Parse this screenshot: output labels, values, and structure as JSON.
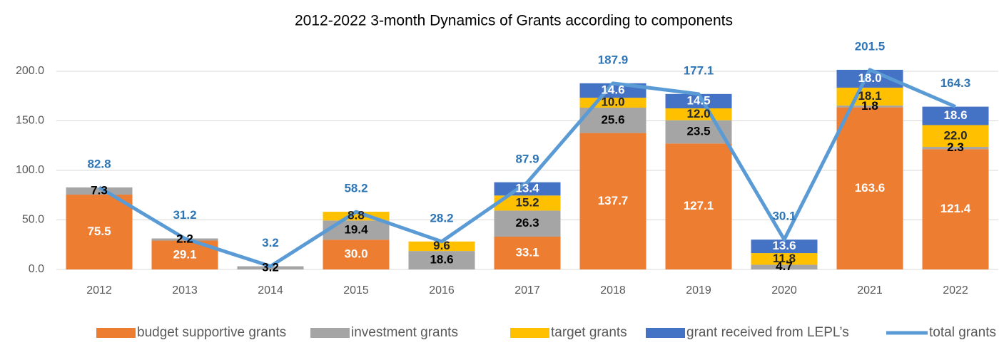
{
  "chart_data": {
    "type": "stacked-bar-line",
    "title": "2012-2022 3-month Dynamics of Grants according to components",
    "categories": [
      "2012",
      "2013",
      "2014",
      "2015",
      "2016",
      "2017",
      "2018",
      "2019",
      "2020",
      "2021",
      "2022"
    ],
    "series": [
      {
        "name": "budget supportive grants",
        "color": "#ED7D31",
        "type": "bar",
        "label_color": "#ffffff",
        "values": [
          75.5,
          29.1,
          null,
          30.0,
          null,
          33.1,
          137.7,
          127.1,
          null,
          163.6,
          121.4
        ],
        "value_labels": [
          "75.5",
          "29.1",
          null,
          "30.0",
          null,
          "33.1",
          "137.7",
          "127.1",
          null,
          "163.6",
          "121.4"
        ]
      },
      {
        "name": "investment grants",
        "color": "#A5A5A5",
        "type": "bar",
        "label_color": "#000000",
        "values": [
          7.3,
          2.2,
          3.2,
          19.4,
          18.6,
          26.3,
          25.6,
          23.5,
          4.7,
          1.8,
          2.3
        ],
        "value_labels": [
          "7.3",
          "2.2",
          "3.2",
          "19.4",
          "18.6",
          "26.3",
          "25.6",
          "23.5",
          "4.7",
          "1.8",
          "2.3"
        ]
      },
      {
        "name": "target grants",
        "color": "#FFC000",
        "type": "bar",
        "label_color": "#262626",
        "values": [
          null,
          null,
          null,
          8.8,
          9.6,
          15.2,
          10.0,
          12.0,
          11.8,
          18.1,
          22.0
        ],
        "value_labels": [
          null,
          null,
          null,
          "8.8",
          "9.6",
          "15.2",
          "10.0",
          "12.0",
          "11.8",
          "18.1",
          "22.0"
        ]
      },
      {
        "name": "grant received from LEPL’s",
        "color": "#4472C4",
        "type": "bar",
        "label_color": "#ffffff",
        "values": [
          null,
          null,
          null,
          null,
          null,
          13.4,
          14.6,
          14.5,
          13.6,
          18.0,
          18.6
        ],
        "value_labels": [
          null,
          null,
          null,
          null,
          null,
          "13.4",
          "14.6",
          "14.5",
          "13.6",
          "18.0",
          "18.6"
        ]
      },
      {
        "name": "total grants",
        "color": "#5B9BD5",
        "type": "line",
        "label_color": "#2E75B6",
        "values": [
          82.8,
          31.2,
          3.2,
          58.2,
          28.2,
          87.9,
          187.9,
          177.1,
          30.1,
          201.5,
          164.3
        ]
      }
    ],
    "ylim": [
      0,
      200
    ],
    "yticks": [
      {
        "value": 0,
        "label": "0.0"
      },
      {
        "value": 50,
        "label": "50.0"
      },
      {
        "value": 100,
        "label": "100.0"
      },
      {
        "value": 150,
        "label": "150.0"
      },
      {
        "value": 200,
        "label": "200.0"
      }
    ],
    "grid": true,
    "legend": "bottom"
  }
}
